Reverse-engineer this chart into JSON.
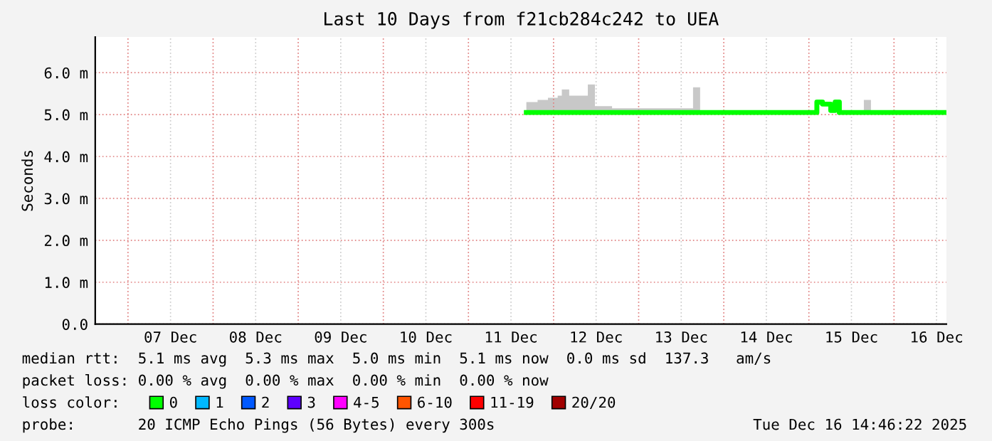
{
  "chart_data": {
    "type": "step",
    "title": "Last 10 Days from f21cb284c242 to UEA",
    "ylabel": "Seconds",
    "x": [
      "2025-12-11T16:20",
      "2025-12-11T19:30",
      "2025-12-11T22:25",
      "2025-12-12T01:10",
      "2025-12-12T02:20",
      "2025-12-12T04:25",
      "2025-12-12T06:25",
      "2025-12-12T09:40",
      "2025-12-12T11:40",
      "2025-12-12T16:30",
      "2025-12-13T06:30",
      "2025-12-13T15:20",
      "2025-12-13T17:20",
      "2025-12-14T20:40",
      "2025-12-15T02:15",
      "2025-12-15T03:50",
      "2025-12-15T05:25",
      "2025-12-15T06:10",
      "2025-12-15T07:25",
      "2025-12-15T08:35",
      "2025-12-15T15:30",
      "2025-12-15T17:30",
      "2025-12-16T14:46"
    ],
    "series": [
      {
        "name": "0",
        "color": "#00ff00",
        "values": [
          5.05,
          5.05,
          5.05,
          5.05,
          5.05,
          5.05,
          5.05,
          5.05,
          5.05,
          5.05,
          5.05,
          5.05,
          5.05,
          5.05,
          5.3,
          5.25,
          5.25,
          5.1,
          5.3,
          5.05,
          5.05,
          5.05,
          5.05
        ],
        "lower": [
          5.05,
          5.05,
          5.05,
          5.05,
          5.05,
          5.05,
          5.05,
          5.05,
          5.05,
          5.05,
          5.05,
          5.05,
          5.05,
          5.05,
          5.3,
          5.25,
          5.25,
          5.1,
          5.3,
          5.05,
          5.05,
          5.05,
          5.05
        ],
        "upper": [
          5.3,
          5.35,
          5.4,
          5.45,
          5.6,
          5.45,
          5.45,
          5.72,
          5.2,
          5.15,
          5.15,
          5.65,
          5.1,
          5.1,
          5.35,
          5.25,
          5.25,
          5.1,
          5.3,
          5.1,
          5.35,
          5.1,
          5.1
        ]
      },
      {
        "name": "1",
        "color": "#00b8ff",
        "values": [
          null,
          null,
          null,
          null,
          null,
          null,
          null,
          null,
          null,
          null,
          null,
          null,
          null,
          null,
          null,
          null,
          null,
          null,
          null,
          null,
          null,
          null,
          null
        ]
      },
      {
        "name": "2",
        "color": "#0059ff",
        "values": [
          null,
          null,
          null,
          null,
          null,
          null,
          null,
          null,
          null,
          null,
          null,
          null,
          null,
          null,
          null,
          null,
          null,
          null,
          null,
          null,
          null,
          null,
          null
        ]
      },
      {
        "name": "3",
        "color": "#5e00ff",
        "values": [
          null,
          null,
          null,
          null,
          null,
          null,
          null,
          null,
          null,
          null,
          null,
          null,
          null,
          null,
          null,
          null,
          null,
          null,
          null,
          null,
          null,
          null,
          null
        ]
      },
      {
        "name": "4-5",
        "color": "#ff00ff",
        "values": [
          null,
          null,
          null,
          null,
          null,
          null,
          null,
          null,
          null,
          null,
          null,
          null,
          null,
          null,
          null,
          null,
          null,
          null,
          null,
          null,
          null,
          null,
          null
        ]
      },
      {
        "name": "6-10",
        "color": "#ff5500",
        "values": [
          null,
          null,
          null,
          null,
          null,
          null,
          null,
          null,
          null,
          null,
          null,
          null,
          null,
          null,
          null,
          null,
          null,
          null,
          null,
          null,
          null,
          null,
          null
        ]
      },
      {
        "name": "11-19",
        "color": "#ff0000",
        "values": [
          null,
          null,
          null,
          null,
          null,
          null,
          null,
          null,
          null,
          null,
          null,
          null,
          null,
          null,
          null,
          null,
          null,
          null,
          null,
          null,
          null,
          null,
          null
        ]
      },
      {
        "name": "20/20",
        "color": "#a10000",
        "values": [
          null,
          null,
          null,
          null,
          null,
          null,
          null,
          null,
          null,
          null,
          null,
          null,
          null,
          null,
          null,
          null,
          null,
          null,
          null,
          null,
          null,
          null,
          null
        ]
      }
    ],
    "legend": "bottom",
    "legend_title": "loss color:",
    "xlim": [
      "2025-12-06T14:46",
      "2025-12-16T14:46"
    ],
    "xticks": [
      {
        "value": "2025-12-07T00:00",
        "label": null
      },
      {
        "value": "2025-12-07T12:00",
        "label": "07 Dec"
      },
      {
        "value": "2025-12-08T00:00",
        "label": null
      },
      {
        "value": "2025-12-08T12:00",
        "label": "08 Dec"
      },
      {
        "value": "2025-12-09T00:00",
        "label": null
      },
      {
        "value": "2025-12-09T12:00",
        "label": "09 Dec"
      },
      {
        "value": "2025-12-10T00:00",
        "label": null
      },
      {
        "value": "2025-12-10T12:00",
        "label": "10 Dec"
      },
      {
        "value": "2025-12-11T00:00",
        "label": null
      },
      {
        "value": "2025-12-11T12:00",
        "label": "11 Dec"
      },
      {
        "value": "2025-12-12T00:00",
        "label": null
      },
      {
        "value": "2025-12-12T12:00",
        "label": "12 Dec"
      },
      {
        "value": "2025-12-13T00:00",
        "label": null
      },
      {
        "value": "2025-12-13T12:00",
        "label": "13 Dec"
      },
      {
        "value": "2025-12-14T00:00",
        "label": null
      },
      {
        "value": "2025-12-14T12:00",
        "label": "14 Dec"
      },
      {
        "value": "2025-12-15T00:00",
        "label": null
      },
      {
        "value": "2025-12-15T12:00",
        "label": "15 Dec"
      },
      {
        "value": "2025-12-16T00:00",
        "label": null
      },
      {
        "value": "2025-12-16T12:00",
        "label": "16 Dec"
      }
    ],
    "ylim": [
      0,
      6.85
    ],
    "yticks": [
      {
        "value": 0,
        "label": "0.0"
      },
      {
        "value": 1,
        "label": "1.0 m"
      },
      {
        "value": 2,
        "label": "2.0 m"
      },
      {
        "value": 3,
        "label": "3.0 m"
      },
      {
        "value": 4,
        "label": "4.0 m"
      },
      {
        "value": 5,
        "label": "5.0 m"
      },
      {
        "value": 6,
        "label": "6.0 m"
      }
    ],
    "grid": true,
    "annotations": [
      "median rtt:  5.1 ms avg  5.3 ms max  5.0 ms min  5.1 ms now  0.0 ms sd  137.3   am/s",
      "packet loss: 0.00 % avg  0.00 % max  0.00 % min  0.00 % now",
      "probe:       20 ICMP Echo Pings (56 Bytes) every 300s",
      "Tue Dec 16 14:46:22 2025"
    ]
  }
}
